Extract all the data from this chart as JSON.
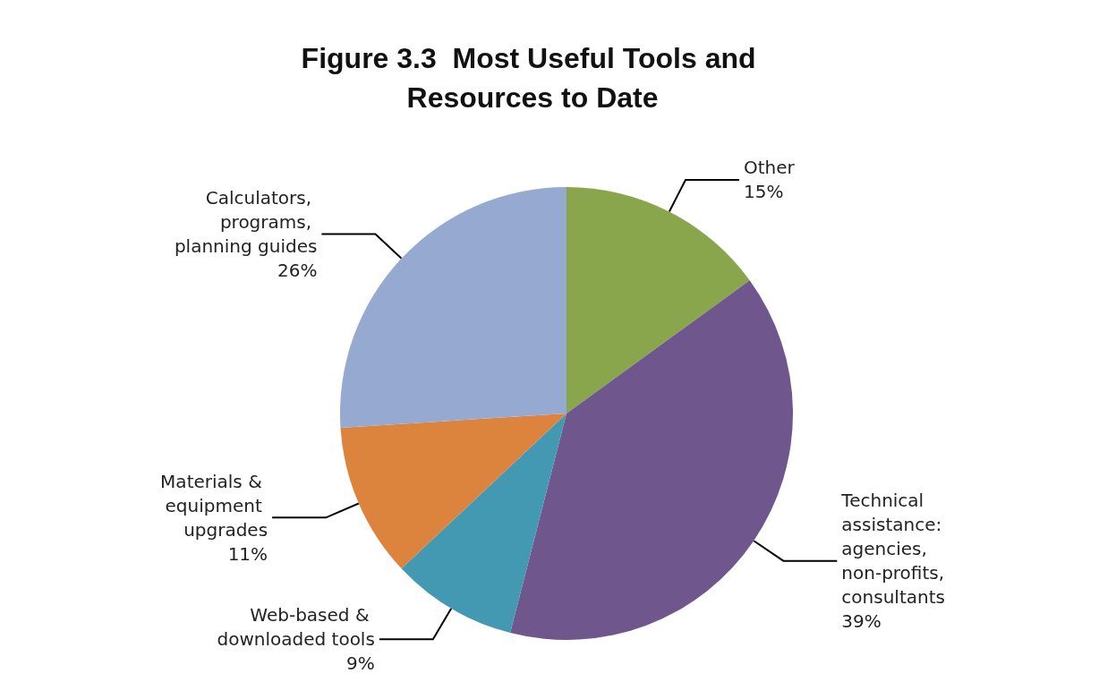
{
  "chart_data": {
    "type": "pie",
    "title": "Figure 3.3  Most Useful Tools and Resources to Date",
    "categories": [
      "Other",
      "Technical assistance: agencies, non-profits, consultants",
      "Web-based & downloaded tools",
      "Materials & equipment upgrades",
      "Calculators, programs, planning guides"
    ],
    "values": [
      15,
      39,
      9,
      11,
      26
    ],
    "value_labels": [
      "15%",
      "39%",
      "9%",
      "11%",
      "26%"
    ],
    "colors": [
      "#8aa64c",
      "#6f578e",
      "#4399b1",
      "#dc843e",
      "#95a9d1"
    ],
    "legend": false
  }
}
